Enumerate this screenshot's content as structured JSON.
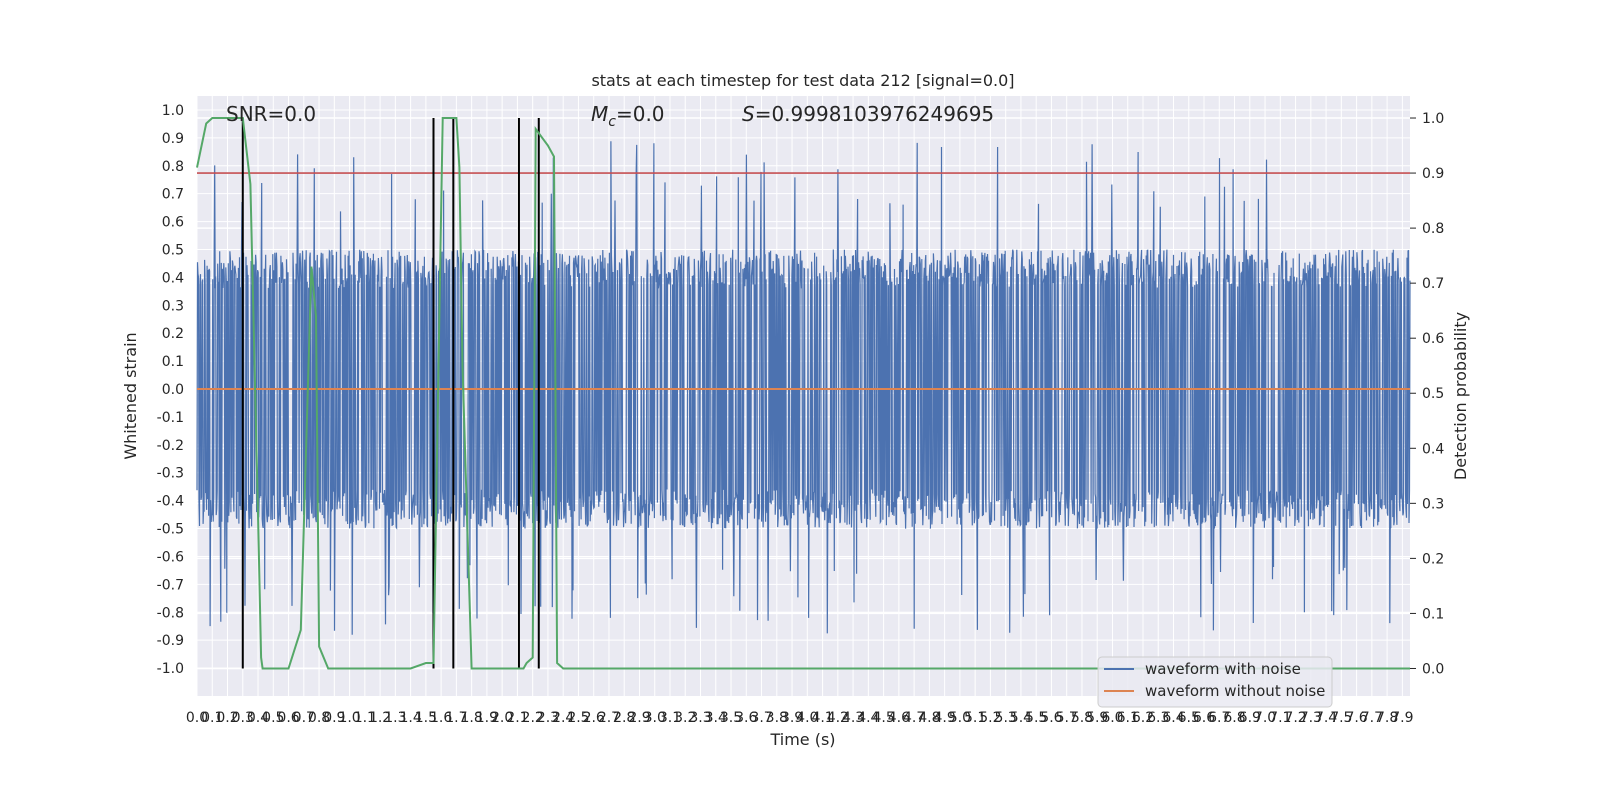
{
  "chart_data": {
    "type": "line",
    "title": "stats at each timestep for test data 212 [signal=0.0]",
    "xlabel": "Time (s)",
    "ylabel_left": "Whitened strain",
    "ylabel_right": "Detection probability",
    "xlim": [
      0.0,
      7.95
    ],
    "ylim_left": [
      -1.1,
      1.05
    ],
    "ylim_right": [
      -0.05,
      1.04
    ],
    "x_ticks": [
      "0.0",
      "0.1",
      "0.2",
      "0.3",
      "0.4",
      "0.5",
      "0.6",
      "0.7",
      "0.8",
      "0.9",
      "1.0",
      "1.1",
      "1.2",
      "1.3",
      "1.4",
      "1.5",
      "1.6",
      "1.7",
      "1.8",
      "1.9",
      "2.0",
      "2.1",
      "2.2",
      "2.3",
      "2.4",
      "2.5",
      "2.6",
      "2.7",
      "2.8",
      "2.9",
      "3.0",
      "3.1",
      "3.2",
      "3.3",
      "3.4",
      "3.5",
      "3.6",
      "3.7",
      "3.8",
      "3.9",
      "4.0",
      "4.1",
      "4.2",
      "4.3",
      "4.4",
      "4.5",
      "4.6",
      "4.7",
      "4.8",
      "4.9",
      "5.0",
      "5.1",
      "5.2",
      "5.3",
      "5.4",
      "5.5",
      "5.6",
      "5.7",
      "5.8",
      "5.9",
      "6.0",
      "6.1",
      "6.2",
      "6.3",
      "6.4",
      "6.5",
      "6.6",
      "6.7",
      "6.8",
      "6.9",
      "7.0",
      "7.1",
      "7.2",
      "7.3",
      "7.4",
      "7.5",
      "7.6",
      "7.7",
      "7.8",
      "7.9"
    ],
    "y_left_ticks": [
      "1.0",
      "0.9",
      "0.8",
      "0.7",
      "0.6",
      "0.5",
      "0.4",
      "0.3",
      "0.2",
      "0.1",
      "0.0",
      "-0.1",
      "-0.2",
      "-0.3",
      "-0.4",
      "-0.5",
      "-0.6",
      "-0.7",
      "-0.8",
      "-0.9",
      "-1.0"
    ],
    "y_right_ticks": [
      "1.0",
      "0.9",
      "0.8",
      "0.7",
      "0.6",
      "0.5",
      "0.4",
      "0.3",
      "0.2",
      "0.1",
      "0.0"
    ],
    "annotations": {
      "snr": "SNR=0.0",
      "mc_symbol": "M",
      "mc_sub": "c",
      "mc_value": "=0.0",
      "s_symbol": "S",
      "s_value": "=0.9998103976249695"
    },
    "threshold_line": {
      "axis": "right",
      "y": 0.9,
      "color": "#c44e52"
    },
    "noise_band": {
      "typical_amplitude": 0.4,
      "peak_amplitude": 0.9,
      "color": "#4c72b0"
    },
    "clean_waveform": {
      "value": 0.0,
      "color": "#dd8452"
    },
    "detection_probability": {
      "color": "#55a868",
      "x": [
        0.0,
        0.06,
        0.1,
        0.2,
        0.3,
        0.35,
        0.4,
        0.42,
        0.43,
        0.48,
        0.6,
        0.68,
        0.75,
        0.78,
        0.8,
        0.86,
        0.92,
        1.0,
        1.2,
        1.4,
        1.5,
        1.55,
        1.61,
        1.62,
        1.7,
        1.72,
        1.74,
        1.8,
        1.82,
        2.1,
        2.14,
        2.16,
        2.2,
        2.22,
        2.3,
        2.34,
        2.36,
        2.4,
        3.0,
        4.0,
        5.0,
        6.0,
        7.0,
        7.95
      ],
      "y": [
        0.91,
        0.99,
        1.0,
        1.0,
        1.0,
        0.88,
        0.28,
        0.02,
        0.0,
        0.0,
        0.0,
        0.07,
        0.73,
        0.64,
        0.04,
        0.0,
        0.0,
        0.0,
        0.0,
        0.0,
        0.01,
        0.01,
        1.0,
        1.0,
        1.0,
        0.91,
        0.55,
        0.0,
        0.0,
        0.0,
        0.0,
        0.01,
        0.02,
        0.98,
        0.95,
        0.93,
        0.01,
        0.0,
        0.0,
        0.0,
        0.0,
        0.0,
        0.0,
        0.0
      ]
    },
    "event_markers_x": [
      0.3,
      1.55,
      1.68,
      2.11,
      2.24
    ],
    "grid": true,
    "legend": {
      "placement": "lower-right",
      "entries": [
        {
          "label": "waveform with noise",
          "color": "#4c72b0"
        },
        {
          "label": "waveform without noise",
          "color": "#dd8452"
        }
      ]
    },
    "colors": {
      "plot_bg": "#eaeaf2",
      "grid": "#ffffff",
      "marker": "#000000"
    }
  }
}
